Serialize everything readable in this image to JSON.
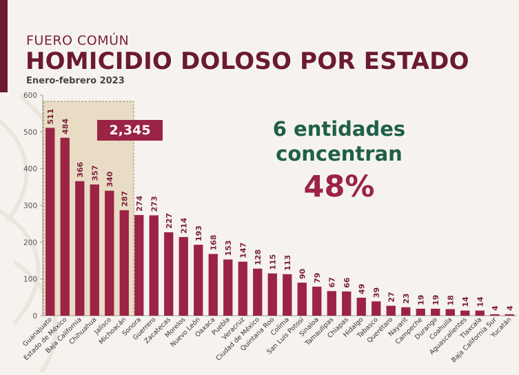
{
  "header": {
    "subtitle": "FUERO COMÚN",
    "title": "HOMICIDIO DOLOSO POR ESTADO",
    "period": "Enero-febrero 2023"
  },
  "summary": {
    "line1": "6 entidades",
    "line2": "concentran",
    "percent": "48%"
  },
  "highlight": {
    "total_label": "2,345",
    "count": 6
  },
  "colors": {
    "bar": "#9b2345",
    "bar_dark": "#6b1a33",
    "accent_green": "#1f5f4a",
    "highlight_box": "#e9dcc4"
  },
  "chart_data": {
    "type": "bar",
    "title": "HOMICIDIO DOLOSO POR ESTADO",
    "ylim": [
      0,
      600
    ],
    "yticks": [
      0,
      100,
      200,
      300,
      400,
      500,
      600
    ],
    "grid": false,
    "categories": [
      "Guanajuato",
      "Estado de México",
      "Baja California",
      "Chihuahua",
      "Jalisco",
      "Michoacán",
      "Sonora",
      "Guerrero",
      "Zacatecas",
      "Morelos",
      "Nuevo León",
      "Oaxaca",
      "Puebla",
      "Veracruz",
      "Ciudad de México",
      "Quintana Roo",
      "Colima",
      "San Luis Potosí",
      "Sinaloa",
      "Tamaulipas",
      "Chiapas",
      "Hidalgo",
      "Tabasco",
      "Querétaro",
      "Nayarit",
      "Campeche",
      "Durango",
      "Coahuila",
      "Aguascalientes",
      "Tlaxcala",
      "Baja California Sur",
      "Yucatán"
    ],
    "values": [
      511,
      484,
      366,
      357,
      340,
      287,
      274,
      273,
      227,
      214,
      193,
      168,
      153,
      147,
      128,
      115,
      113,
      90,
      79,
      67,
      66,
      49,
      39,
      27,
      23,
      19,
      19,
      18,
      14,
      14,
      4,
      4
    ]
  }
}
